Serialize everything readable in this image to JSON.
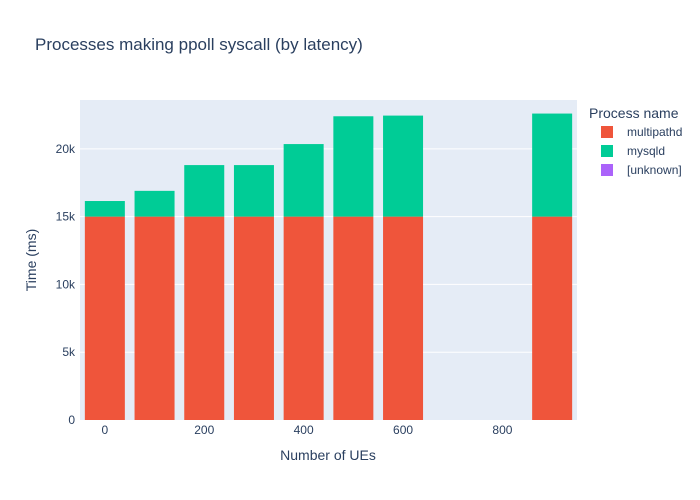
{
  "chart_data": {
    "type": "bar",
    "barmode": "stack",
    "title": "Processes making ppoll syscall (by latency)",
    "xlabel": "Number of UEs",
    "ylabel": "Time (ms)",
    "x": [
      0,
      100,
      200,
      300,
      400,
      500,
      600,
      900
    ],
    "xlim": [
      -50,
      950
    ],
    "ylim": [
      0,
      23600
    ],
    "xticks": [
      0,
      200,
      400,
      600,
      800
    ],
    "xtick_labels": [
      "0",
      "200",
      "400",
      "600",
      "800"
    ],
    "yticks": [
      0,
      5000,
      10000,
      15000,
      20000
    ],
    "ytick_labels": [
      "0",
      "5k",
      "10k",
      "15k",
      "20k"
    ],
    "grid": true,
    "legend": {
      "title": "Process name",
      "placement": "right"
    },
    "series": [
      {
        "name": "multipathd",
        "color": "#EF553B",
        "values": [
          15000,
          15000,
          15000,
          15000,
          15000,
          15000,
          15000,
          15000
        ]
      },
      {
        "name": "mysqld",
        "color": "#00CC96",
        "values": [
          1150,
          1900,
          3800,
          3800,
          5350,
          7400,
          7450,
          7600
        ]
      },
      {
        "name": "[unknown]",
        "color": "#AB63FA",
        "values": [
          0,
          0,
          0,
          0,
          0,
          0,
          0,
          0
        ]
      }
    ]
  }
}
